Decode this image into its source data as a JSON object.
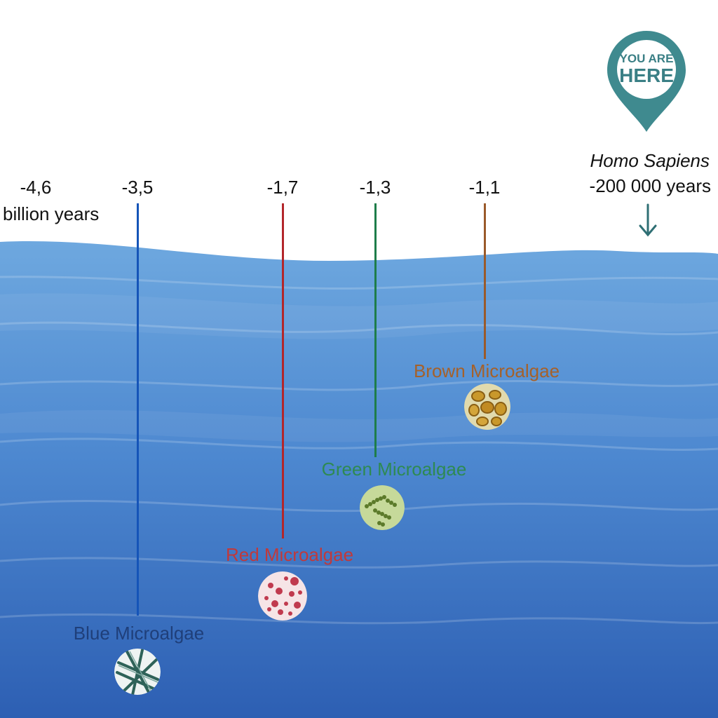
{
  "timeline": {
    "ticks": [
      "-4,6",
      "-3,5",
      "-1,7",
      "-1,3",
      "-1,1"
    ],
    "unit_label": "billion years"
  },
  "marker": {
    "line1": "YOU ARE",
    "line2": "HERE",
    "species": "Homo Sapiens",
    "years": "-200 000 years",
    "icon": "location-pin-icon",
    "arrow_icon": "arrow-down-icon",
    "color": "#3f8a8f"
  },
  "algae": [
    {
      "label": "Blue Microalgae",
      "time": "-3,5",
      "color": "#1f3f7a",
      "line_color": "#1554b8"
    },
    {
      "label": "Red Microalgae",
      "time": "-1,7",
      "color": "#c0393b",
      "line_color": "#b3262a"
    },
    {
      "label": "Green Microalgae",
      "time": "-1,3",
      "color": "#2e8a52",
      "line_color": "#1e7d4a"
    },
    {
      "label": "Brown Microalgae",
      "time": "-1,1",
      "color": "#a5612a",
      "line_color": "#9a5a2a"
    }
  ],
  "colors": {
    "sea_top": "#6aa4dc",
    "sea_bottom": "#2f63b5"
  }
}
